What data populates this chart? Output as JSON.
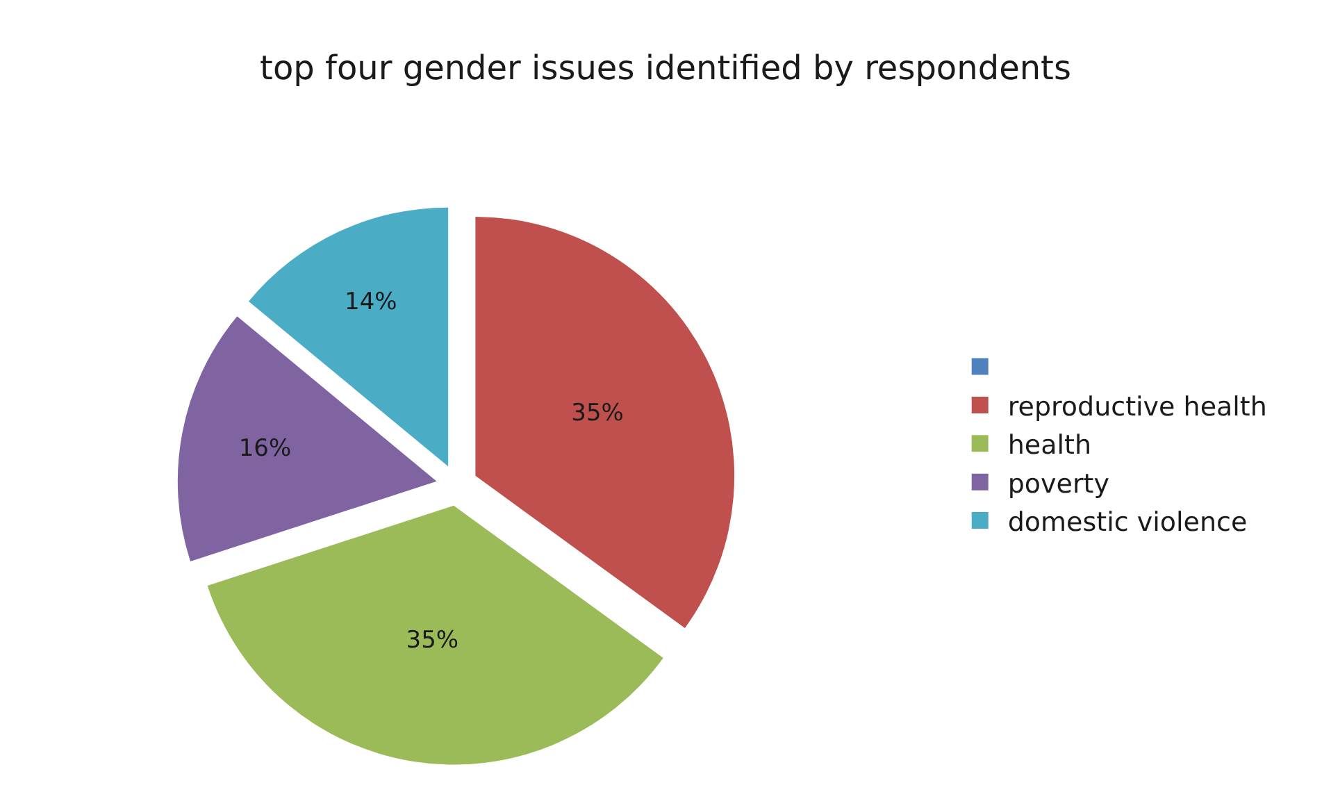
{
  "chart_data": {
    "type": "pie",
    "title": "top four gender issues identified by respondents",
    "categories": [
      null,
      "reproductive health",
      "health",
      "poverty",
      "domestic violence"
    ],
    "values": [
      0,
      35,
      35,
      16,
      14
    ],
    "value_labels": [
      null,
      "35%",
      "35%",
      "16%",
      "14%"
    ],
    "colors": [
      "#4f81bd",
      "#c0504d",
      "#9bbb59",
      "#8064a2",
      "#4bacc6"
    ],
    "legend": "right"
  }
}
